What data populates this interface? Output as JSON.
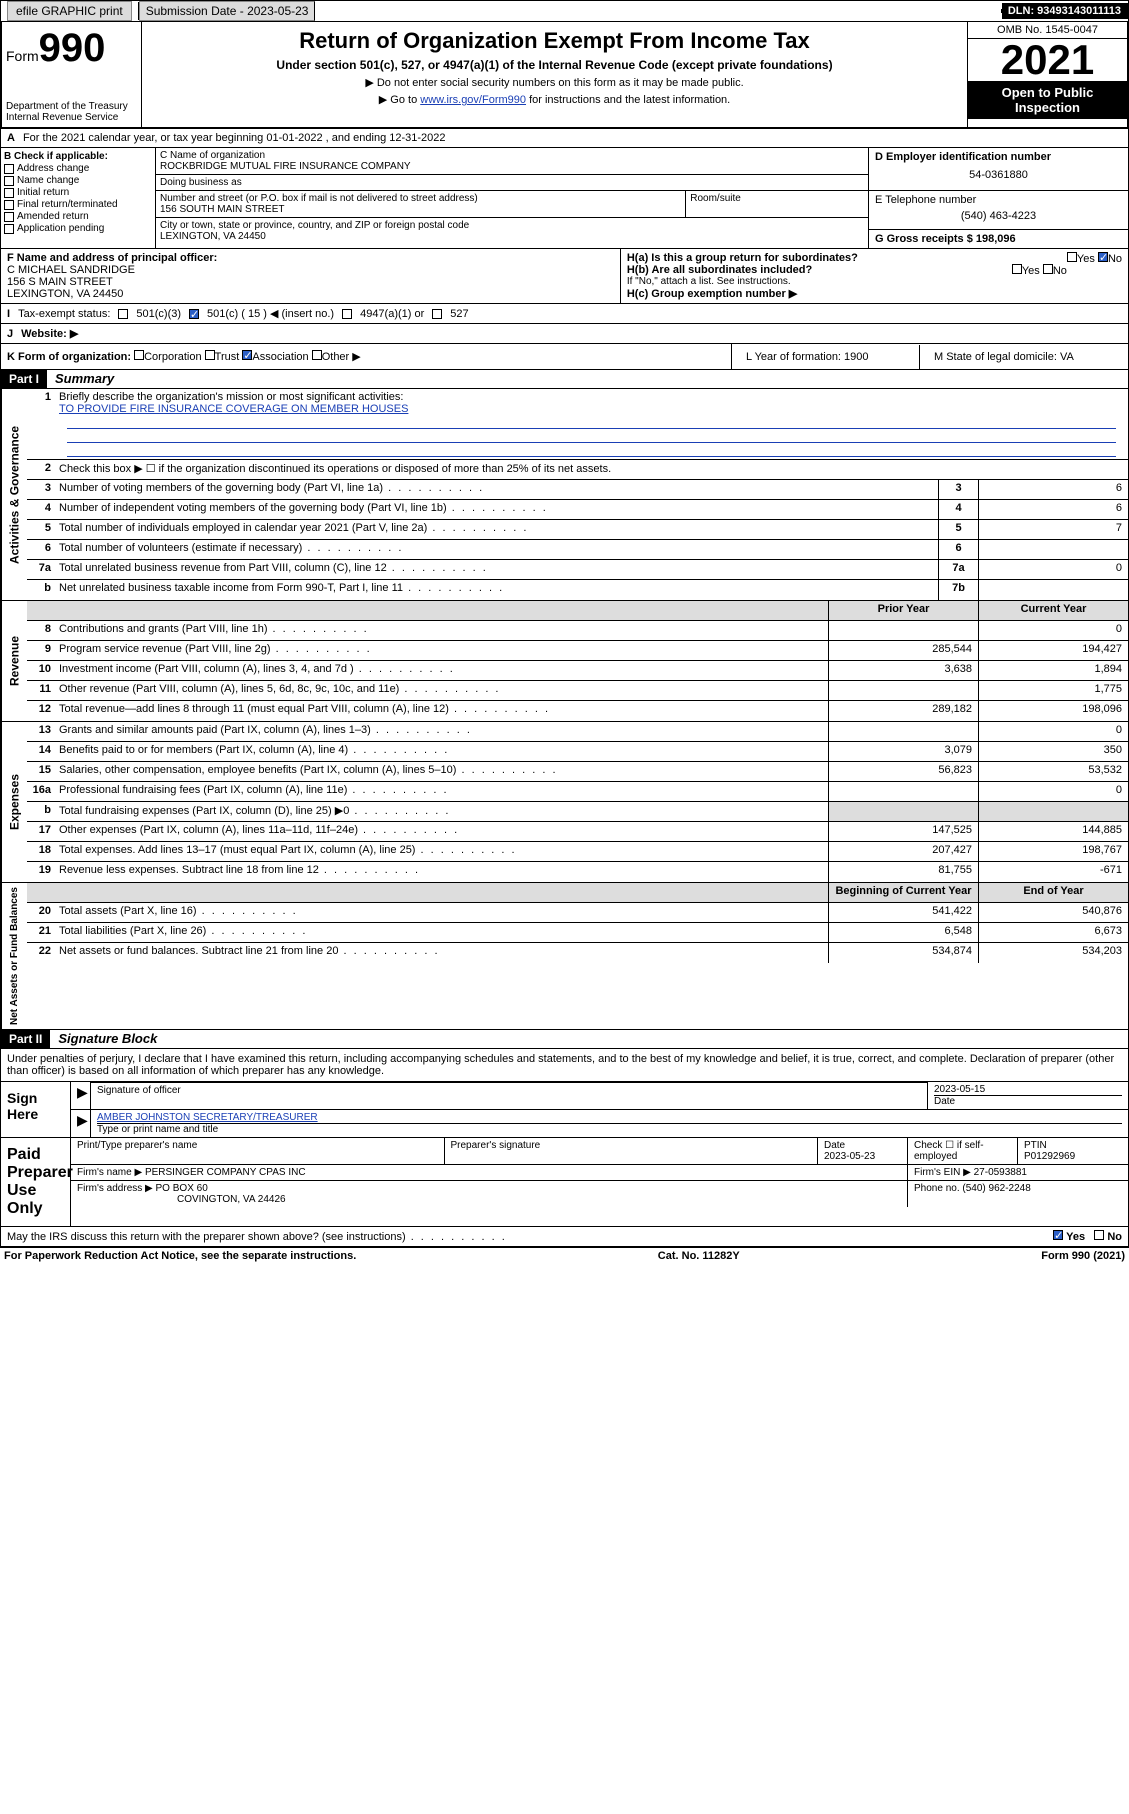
{
  "topbar": {
    "efile": "efile GRAPHIC print",
    "sub_label": "Submission Date - 2023-05-23",
    "dln": "DLN: 93493143011113"
  },
  "header": {
    "form_label": "Form",
    "form_num": "990",
    "dept": "Department of the Treasury",
    "irs": "Internal Revenue Service",
    "title": "Return of Organization Exempt From Income Tax",
    "sub1": "Under section 501(c), 527, or 4947(a)(1) of the Internal Revenue Code (except private foundations)",
    "sub2": "▶ Do not enter social security numbers on this form as it may be made public.",
    "sub3_pre": "▶ Go to ",
    "sub3_link": "www.irs.gov/Form990",
    "sub3_post": " for instructions and the latest information.",
    "omb": "OMB No. 1545-0047",
    "year": "2021",
    "inspect": "Open to Public Inspection"
  },
  "row_a": {
    "text": "For the 2021 calendar year, or tax year beginning 01-01-2022  , and ending 12-31-2022",
    "label": "A"
  },
  "col_b": {
    "label": "B Check if applicable:",
    "items": [
      "Address change",
      "Name change",
      "Initial return",
      "Final return/terminated",
      "Amended return",
      "Application pending"
    ]
  },
  "col_c": {
    "name_label": "C Name of organization",
    "name": "ROCKBRIDGE MUTUAL FIRE INSURANCE COMPANY",
    "dba_label": "Doing business as",
    "street_label": "Number and street (or P.O. box if mail is not delivered to street address)",
    "room_label": "Room/suite",
    "street": "156 SOUTH MAIN STREET",
    "city_label": "City or town, state or province, country, and ZIP or foreign postal code",
    "city": "LEXINGTON, VA  24450"
  },
  "col_d": {
    "label": "D Employer identification number",
    "value": "54-0361880",
    "phone_label": "E Telephone number",
    "phone": "(540) 463-4223",
    "gross_label": "G Gross receipts $ 198,096"
  },
  "row_f": {
    "label": "F  Name and address of principal officer:",
    "name": "C MICHAEL SANDRIDGE",
    "addr1": "156 S MAIN STREET",
    "addr2": "LEXINGTON, VA  24450",
    "ha": "H(a)  Is this a group return for subordinates?",
    "hb": "H(b)  Are all subordinates included?",
    "hb_note": "If \"No,\" attach a list. See instructions.",
    "hc": "H(c)  Group exemption number ▶",
    "yes": "Yes",
    "no": "No"
  },
  "row_i": {
    "label": "I",
    "text": "Tax-exempt status:",
    "opts": [
      "501(c)(3)",
      "501(c) ( 15 ) ◀ (insert no.)",
      "4947(a)(1) or",
      "527"
    ]
  },
  "row_j": {
    "label": "J",
    "text": "Website: ▶"
  },
  "row_k": {
    "label": "K Form of organization:",
    "opts": [
      "Corporation",
      "Trust",
      "Association",
      "Other ▶"
    ],
    "l": "L Year of formation: 1900",
    "m": "M State of legal domicile: VA"
  },
  "part1": {
    "hdr": "Part I",
    "title": "Summary",
    "line1": "Briefly describe the organization's mission or most significant activities:",
    "mission": "TO PROVIDE FIRE INSURANCE COVERAGE ON MEMBER HOUSES",
    "line2": "Check this box ▶ ☐  if the organization discontinued its operations or disposed of more than 25% of its net assets.",
    "sides": {
      "gov": "Activities & Governance",
      "rev": "Revenue",
      "exp": "Expenses",
      "net": "Net Assets or Fund Balances"
    },
    "gov_rows": [
      {
        "n": "3",
        "d": "Number of voting members of the governing body (Part VI, line 1a)",
        "c": "3",
        "v": "6"
      },
      {
        "n": "4",
        "d": "Number of independent voting members of the governing body (Part VI, line 1b)",
        "c": "4",
        "v": "6"
      },
      {
        "n": "5",
        "d": "Total number of individuals employed in calendar year 2021 (Part V, line 2a)",
        "c": "5",
        "v": "7"
      },
      {
        "n": "6",
        "d": "Total number of volunteers (estimate if necessary)",
        "c": "6",
        "v": ""
      },
      {
        "n": "7a",
        "d": "Total unrelated business revenue from Part VIII, column (C), line 12",
        "c": "7a",
        "v": "0"
      },
      {
        "n": "b",
        "d": "Net unrelated business taxable income from Form 990-T, Part I, line 11",
        "c": "7b",
        "v": ""
      }
    ],
    "col_hdr": {
      "prior": "Prior Year",
      "current": "Current Year"
    },
    "rev_rows": [
      {
        "n": "8",
        "d": "Contributions and grants (Part VIII, line 1h)",
        "p": "",
        "c": "0"
      },
      {
        "n": "9",
        "d": "Program service revenue (Part VIII, line 2g)",
        "p": "285,544",
        "c": "194,427"
      },
      {
        "n": "10",
        "d": "Investment income (Part VIII, column (A), lines 3, 4, and 7d )",
        "p": "3,638",
        "c": "1,894"
      },
      {
        "n": "11",
        "d": "Other revenue (Part VIII, column (A), lines 5, 6d, 8c, 9c, 10c, and 11e)",
        "p": "",
        "c": "1,775"
      },
      {
        "n": "12",
        "d": "Total revenue—add lines 8 through 11 (must equal Part VIII, column (A), line 12)",
        "p": "289,182",
        "c": "198,096"
      }
    ],
    "exp_rows": [
      {
        "n": "13",
        "d": "Grants and similar amounts paid (Part IX, column (A), lines 1–3)",
        "p": "",
        "c": "0"
      },
      {
        "n": "14",
        "d": "Benefits paid to or for members (Part IX, column (A), line 4)",
        "p": "3,079",
        "c": "350"
      },
      {
        "n": "15",
        "d": "Salaries, other compensation, employee benefits (Part IX, column (A), lines 5–10)",
        "p": "56,823",
        "c": "53,532"
      },
      {
        "n": "16a",
        "d": "Professional fundraising fees (Part IX, column (A), line 11e)",
        "p": "",
        "c": "0"
      },
      {
        "n": "b",
        "d": "Total fundraising expenses (Part IX, column (D), line 25) ▶0",
        "p": "shade",
        "c": "shade"
      },
      {
        "n": "17",
        "d": "Other expenses (Part IX, column (A), lines 11a–11d, 11f–24e)",
        "p": "147,525",
        "c": "144,885"
      },
      {
        "n": "18",
        "d": "Total expenses. Add lines 13–17 (must equal Part IX, column (A), line 25)",
        "p": "207,427",
        "c": "198,767"
      },
      {
        "n": "19",
        "d": "Revenue less expenses. Subtract line 18 from line 12",
        "p": "81,755",
        "c": "-671"
      }
    ],
    "net_hdr": {
      "begin": "Beginning of Current Year",
      "end": "End of Year"
    },
    "net_rows": [
      {
        "n": "20",
        "d": "Total assets (Part X, line 16)",
        "p": "541,422",
        "c": "540,876"
      },
      {
        "n": "21",
        "d": "Total liabilities (Part X, line 26)",
        "p": "6,548",
        "c": "6,673"
      },
      {
        "n": "22",
        "d": "Net assets or fund balances. Subtract line 21 from line 20",
        "p": "534,874",
        "c": "534,203"
      }
    ]
  },
  "part2": {
    "hdr": "Part II",
    "title": "Signature Block",
    "decl": "Under penalties of perjury, I declare that I have examined this return, including accompanying schedules and statements, and to the best of my knowledge and belief, it is true, correct, and complete. Declaration of preparer (other than officer) is based on all information of which preparer has any knowledge.",
    "sign_here": "Sign Here",
    "sig_officer": "Signature of officer",
    "sig_date": "2023-05-15",
    "date_label": "Date",
    "officer": "AMBER JOHNSTON  SECRETARY/TREASURER",
    "type_name": "Type or print name and title",
    "paid": "Paid Preparer Use Only",
    "prep_name_label": "Print/Type preparer's name",
    "prep_sig_label": "Preparer's signature",
    "prep_date_label": "Date",
    "prep_date": "2023-05-23",
    "check_self": "Check ☐ if self-employed",
    "ptin_label": "PTIN",
    "ptin": "P01292969",
    "firm_name_label": "Firm's name    ▶",
    "firm_name": "PERSINGER COMPANY CPAS INC",
    "firm_ein_label": "Firm's EIN ▶",
    "firm_ein": "27-0593881",
    "firm_addr_label": "Firm's address ▶",
    "firm_addr1": "PO BOX 60",
    "firm_addr2": "COVINGTON, VA  24426",
    "firm_phone_label": "Phone no.",
    "firm_phone": "(540) 962-2248",
    "may_irs": "May the IRS discuss this return with the preparer shown above? (see instructions)",
    "yes": "Yes",
    "no": "No"
  },
  "footer": {
    "left": "For Paperwork Reduction Act Notice, see the separate instructions.",
    "mid": "Cat. No. 11282Y",
    "right": "Form 990 (2021)"
  }
}
